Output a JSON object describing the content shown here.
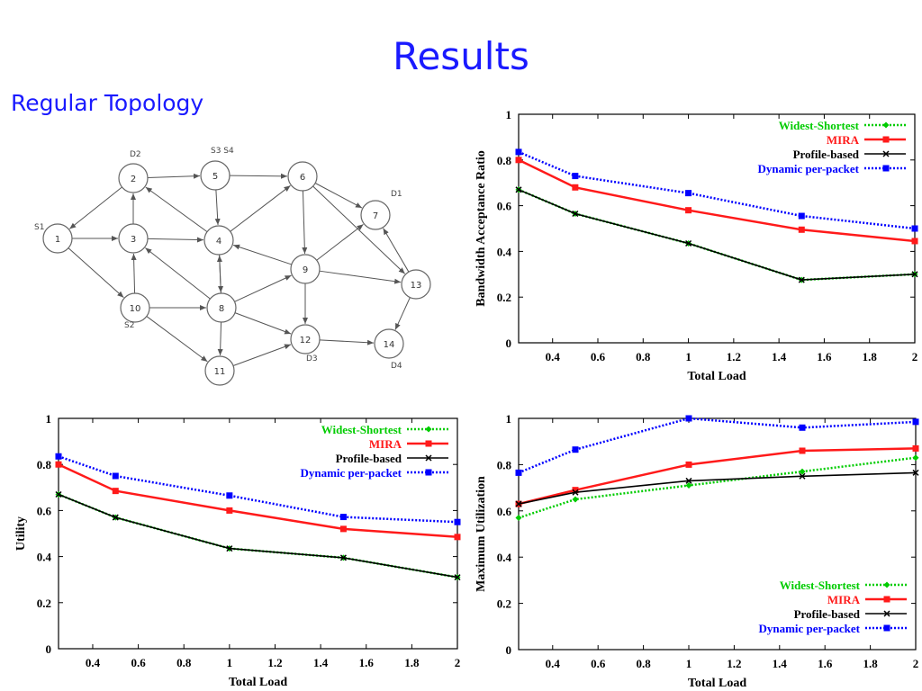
{
  "slide": {
    "title": "Results",
    "subtitle": "Regular Topology"
  },
  "topology": {
    "nodes": [
      {
        "id": "1",
        "label": "1",
        "tag": "S1"
      },
      {
        "id": "2",
        "label": "2",
        "tag": "D2"
      },
      {
        "id": "3",
        "label": "3",
        "tag": ""
      },
      {
        "id": "4",
        "label": "4",
        "tag": ""
      },
      {
        "id": "5",
        "label": "5",
        "tag": "S3  S4"
      },
      {
        "id": "6",
        "label": "6",
        "tag": ""
      },
      {
        "id": "7",
        "label": "7",
        "tag": "D1"
      },
      {
        "id": "8",
        "label": "8",
        "tag": ""
      },
      {
        "id": "9",
        "label": "9",
        "tag": ""
      },
      {
        "id": "10",
        "label": "10",
        "tag": "S2"
      },
      {
        "id": "11",
        "label": "11",
        "tag": ""
      },
      {
        "id": "12",
        "label": "12",
        "tag": "D3"
      },
      {
        "id": "13",
        "label": "13",
        "tag": ""
      },
      {
        "id": "14",
        "label": "14",
        "tag": "D4"
      }
    ],
    "edges": [
      [
        "2",
        "1"
      ],
      [
        "1",
        "3"
      ],
      [
        "1",
        "10"
      ],
      [
        "3",
        "2"
      ],
      [
        "2",
        "5"
      ],
      [
        "5",
        "6"
      ],
      [
        "5",
        "4"
      ],
      [
        "4",
        "2"
      ],
      [
        "3",
        "4"
      ],
      [
        "10",
        "3"
      ],
      [
        "6",
        "7"
      ],
      [
        "6",
        "9"
      ],
      [
        "4",
        "6"
      ],
      [
        "4",
        "8"
      ],
      [
        "8",
        "4"
      ],
      [
        "8",
        "3"
      ],
      [
        "9",
        "4"
      ],
      [
        "10",
        "8"
      ],
      [
        "10",
        "11"
      ],
      [
        "8",
        "11"
      ],
      [
        "8",
        "9"
      ],
      [
        "9",
        "7"
      ],
      [
        "9",
        "12"
      ],
      [
        "9",
        "13"
      ],
      [
        "8",
        "12"
      ],
      [
        "11",
        "12"
      ],
      [
        "12",
        "14"
      ],
      [
        "13",
        "7"
      ],
      [
        "13",
        "14"
      ],
      [
        "6",
        "13"
      ]
    ]
  },
  "chart_data": [
    {
      "type": "line",
      "xlabel": "Total Load",
      "ylabel": "Bandwidth Acceptance Ratio",
      "xlim": [
        0.25,
        2
      ],
      "ylim": [
        0,
        1
      ],
      "xticks": [
        "0.4",
        "0.6",
        "0.8",
        "1",
        "1.2",
        "1.4",
        "1.6",
        "1.8",
        "2"
      ],
      "yticks": [
        "0",
        "0.2",
        "0.4",
        "0.6",
        "0.8",
        "1"
      ],
      "legend_position": "top-right",
      "x": [
        0.25,
        0.5,
        1,
        1.5,
        2
      ],
      "series": [
        {
          "name": "Widest-Shortest",
          "color": "#00cc00",
          "style": "dotted-diamond",
          "values": [
            0.67,
            0.565,
            0.435,
            0.275,
            0.3
          ]
        },
        {
          "name": "MIRA",
          "color": "#ff1a1a",
          "style": "solid-square",
          "values": [
            0.8,
            0.68,
            0.58,
            0.495,
            0.445
          ]
        },
        {
          "name": "Profile-based",
          "color": "#000000",
          "style": "solid-cross",
          "values": [
            0.67,
            0.565,
            0.435,
            0.275,
            0.3
          ]
        },
        {
          "name": "Dynamic per-packet",
          "color": "#0000ff",
          "style": "dotted-square",
          "values": [
            0.835,
            0.73,
            0.655,
            0.555,
            0.5
          ]
        }
      ]
    },
    {
      "type": "line",
      "xlabel": "Total Load",
      "ylabel": "Utility",
      "xlim": [
        0.25,
        2
      ],
      "ylim": [
        0,
        1
      ],
      "xticks": [
        "0.4",
        "0.6",
        "0.8",
        "1",
        "1.2",
        "1.4",
        "1.6",
        "1.8",
        "2"
      ],
      "yticks": [
        "0",
        "0.2",
        "0.4",
        "0.6",
        "0.8",
        "1"
      ],
      "legend_position": "top-right",
      "x": [
        0.25,
        0.5,
        1,
        1.5,
        2
      ],
      "series": [
        {
          "name": "Widest-Shortest",
          "color": "#00cc00",
          "style": "dotted-diamond",
          "values": [
            0.67,
            0.57,
            0.435,
            0.395,
            0.31
          ]
        },
        {
          "name": "MIRA",
          "color": "#ff1a1a",
          "style": "solid-square",
          "values": [
            0.8,
            0.685,
            0.6,
            0.52,
            0.485
          ]
        },
        {
          "name": "Profile-based",
          "color": "#000000",
          "style": "solid-cross",
          "values": [
            0.67,
            0.57,
            0.435,
            0.395,
            0.31
          ]
        },
        {
          "name": "Dynamic per-packet",
          "color": "#0000ff",
          "style": "dotted-square",
          "values": [
            0.835,
            0.75,
            0.665,
            0.572,
            0.55
          ]
        }
      ]
    },
    {
      "type": "line",
      "xlabel": "Total Load",
      "ylabel": "Maximum Utilization",
      "xlim": [
        0.25,
        2
      ],
      "ylim": [
        0,
        1
      ],
      "xticks": [
        "0.4",
        "0.6",
        "0.8",
        "1",
        "1.2",
        "1.4",
        "1.6",
        "1.8",
        "2"
      ],
      "yticks": [
        "0",
        "0.2",
        "0.4",
        "0.6",
        "0.8",
        "1"
      ],
      "legend_position": "bottom-right",
      "x": [
        0.25,
        0.5,
        1,
        1.5,
        2
      ],
      "series": [
        {
          "name": "Widest-Shortest",
          "color": "#00cc00",
          "style": "dotted-diamond",
          "values": [
            0.57,
            0.65,
            0.71,
            0.77,
            0.83
          ]
        },
        {
          "name": "MIRA",
          "color": "#ff1a1a",
          "style": "solid-square",
          "values": [
            0.63,
            0.69,
            0.8,
            0.86,
            0.87
          ]
        },
        {
          "name": "Profile-based",
          "color": "#000000",
          "style": "solid-cross",
          "values": [
            0.63,
            0.68,
            0.73,
            0.75,
            0.765
          ]
        },
        {
          "name": "Dynamic per-packet",
          "color": "#0000ff",
          "style": "dotted-square",
          "values": [
            0.765,
            0.865,
            1.0,
            0.96,
            0.985
          ]
        }
      ]
    }
  ]
}
